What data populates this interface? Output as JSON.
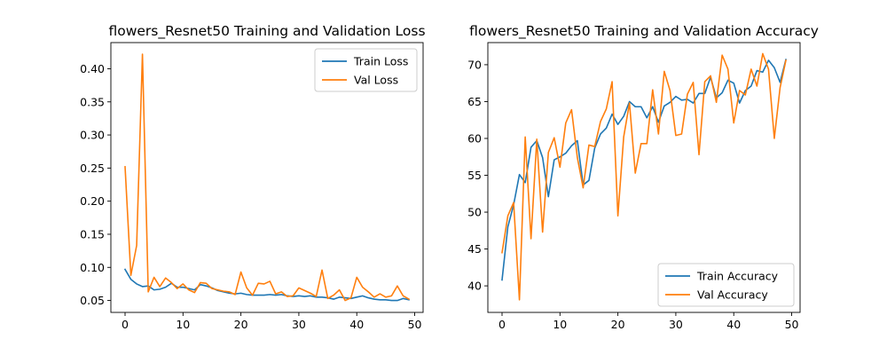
{
  "chart_data": [
    {
      "type": "line",
      "title": "flowers_Resnet50 Training and Validation Loss",
      "xlabel": "",
      "ylabel": "",
      "xlim": [
        -2.45,
        51.45
      ],
      "ylim": [
        0.032,
        0.4395
      ],
      "xticks": [
        0,
        10,
        20,
        30,
        40,
        50
      ],
      "yticks": [
        0.05,
        0.1,
        0.15,
        0.2,
        0.25,
        0.3,
        0.35,
        0.4
      ],
      "ytick_labels": [
        "0.05",
        "0.10",
        "0.15",
        "0.20",
        "0.25",
        "0.30",
        "0.35",
        "0.40"
      ],
      "xtick_labels": [
        "0",
        "10",
        "20",
        "30",
        "40",
        "50"
      ],
      "grid": false,
      "legend_position": "top-right",
      "series": [
        {
          "name": "Train Loss",
          "color": "#1f77b4",
          "x": [
            0,
            1,
            2,
            3,
            4,
            5,
            6,
            7,
            8,
            9,
            10,
            11,
            12,
            13,
            14,
            15,
            16,
            17,
            18,
            19,
            20,
            21,
            22,
            23,
            24,
            25,
            26,
            27,
            28,
            29,
            30,
            31,
            32,
            33,
            34,
            35,
            36,
            37,
            38,
            39,
            40,
            41,
            42,
            43,
            44,
            45,
            46,
            47,
            48,
            49
          ],
          "y": [
            0.097,
            0.082,
            0.075,
            0.071,
            0.072,
            0.066,
            0.067,
            0.07,
            0.076,
            0.07,
            0.07,
            0.068,
            0.066,
            0.074,
            0.072,
            0.069,
            0.065,
            0.063,
            0.061,
            0.06,
            0.061,
            0.059,
            0.058,
            0.058,
            0.058,
            0.059,
            0.058,
            0.059,
            0.057,
            0.056,
            0.057,
            0.056,
            0.057,
            0.055,
            0.055,
            0.054,
            0.052,
            0.055,
            0.054,
            0.053,
            0.055,
            0.057,
            0.054,
            0.052,
            0.051,
            0.051,
            0.05,
            0.05,
            0.053,
            0.051
          ]
        },
        {
          "name": "Val Loss",
          "color": "#ff7f0e",
          "x": [
            0,
            1,
            2,
            3,
            4,
            5,
            6,
            7,
            8,
            9,
            10,
            11,
            12,
            13,
            14,
            15,
            16,
            17,
            18,
            19,
            20,
            21,
            22,
            23,
            24,
            25,
            26,
            27,
            28,
            29,
            30,
            31,
            32,
            33,
            34,
            35,
            36,
            37,
            38,
            39,
            40,
            41,
            42,
            43,
            44,
            45,
            46,
            47,
            48,
            49
          ],
          "y": [
            0.252,
            0.088,
            0.133,
            0.422,
            0.063,
            0.085,
            0.071,
            0.084,
            0.077,
            0.068,
            0.075,
            0.066,
            0.062,
            0.077,
            0.076,
            0.068,
            0.066,
            0.064,
            0.063,
            0.059,
            0.093,
            0.069,
            0.058,
            0.076,
            0.075,
            0.079,
            0.06,
            0.063,
            0.056,
            0.057,
            0.069,
            0.065,
            0.061,
            0.056,
            0.096,
            0.053,
            0.058,
            0.066,
            0.05,
            0.054,
            0.085,
            0.07,
            0.063,
            0.055,
            0.06,
            0.055,
            0.057,
            0.072,
            0.057,
            0.052
          ]
        }
      ]
    },
    {
      "type": "line",
      "title": "flowers_Resnet50 Training and Validation Accuracy",
      "xlabel": "",
      "ylabel": "",
      "xlim": [
        -2.45,
        51.45
      ],
      "ylim": [
        36.4,
        73.0
      ],
      "xticks": [
        0,
        10,
        20,
        30,
        40,
        50
      ],
      "yticks": [
        40,
        45,
        50,
        55,
        60,
        65,
        70
      ],
      "ytick_labels": [
        "40",
        "45",
        "50",
        "55",
        "60",
        "65",
        "70"
      ],
      "xtick_labels": [
        "0",
        "10",
        "20",
        "30",
        "40",
        "50"
      ],
      "grid": false,
      "legend_position": "bottom-right",
      "series": [
        {
          "name": "Train Accuracy",
          "color": "#1f77b4",
          "x": [
            0,
            1,
            2,
            3,
            4,
            5,
            6,
            7,
            8,
            9,
            10,
            11,
            12,
            13,
            14,
            15,
            16,
            17,
            18,
            19,
            20,
            21,
            22,
            23,
            24,
            25,
            26,
            27,
            28,
            29,
            30,
            31,
            32,
            33,
            34,
            35,
            36,
            37,
            38,
            39,
            40,
            41,
            42,
            43,
            44,
            45,
            46,
            47,
            48,
            49
          ],
          "y": [
            40.8,
            48.0,
            51.0,
            55.1,
            54.0,
            58.8,
            59.7,
            57.4,
            52.1,
            57.1,
            57.5,
            58.0,
            59.0,
            59.7,
            53.7,
            54.3,
            58.7,
            60.6,
            61.4,
            63.3,
            61.9,
            63.0,
            65.0,
            64.3,
            64.3,
            62.8,
            64.3,
            62.2,
            64.4,
            64.9,
            65.7,
            65.2,
            65.3,
            64.8,
            66.1,
            66.1,
            68.3,
            65.5,
            66.2,
            67.9,
            67.5,
            64.8,
            66.5,
            67.1,
            69.2,
            69.0,
            70.6,
            69.6,
            67.6,
            70.7
          ]
        },
        {
          "name": "Val Accuracy",
          "color": "#ff7f0e",
          "x": [
            0,
            1,
            2,
            3,
            4,
            5,
            6,
            7,
            8,
            9,
            10,
            11,
            12,
            13,
            14,
            15,
            16,
            17,
            18,
            19,
            20,
            21,
            22,
            23,
            24,
            25,
            26,
            27,
            28,
            29,
            30,
            31,
            32,
            33,
            34,
            35,
            36,
            37,
            38,
            39,
            40,
            41,
            42,
            43,
            44,
            45,
            46,
            47,
            48,
            49
          ],
          "y": [
            44.5,
            49.5,
            51.3,
            38.1,
            60.2,
            46.4,
            59.9,
            47.3,
            58.1,
            60.1,
            56.1,
            62.1,
            63.9,
            57.4,
            53.3,
            59.1,
            58.9,
            62.3,
            64.0,
            67.7,
            49.5,
            60.2,
            64.8,
            55.3,
            59.3,
            59.3,
            66.6,
            60.6,
            69.1,
            66.5,
            60.4,
            60.6,
            66.0,
            67.6,
            57.8,
            67.7,
            68.5,
            64.9,
            71.3,
            69.4,
            62.1,
            66.5,
            65.9,
            69.4,
            67.1,
            71.5,
            69.4,
            60.0,
            66.9,
            70.6
          ]
        }
      ]
    }
  ]
}
